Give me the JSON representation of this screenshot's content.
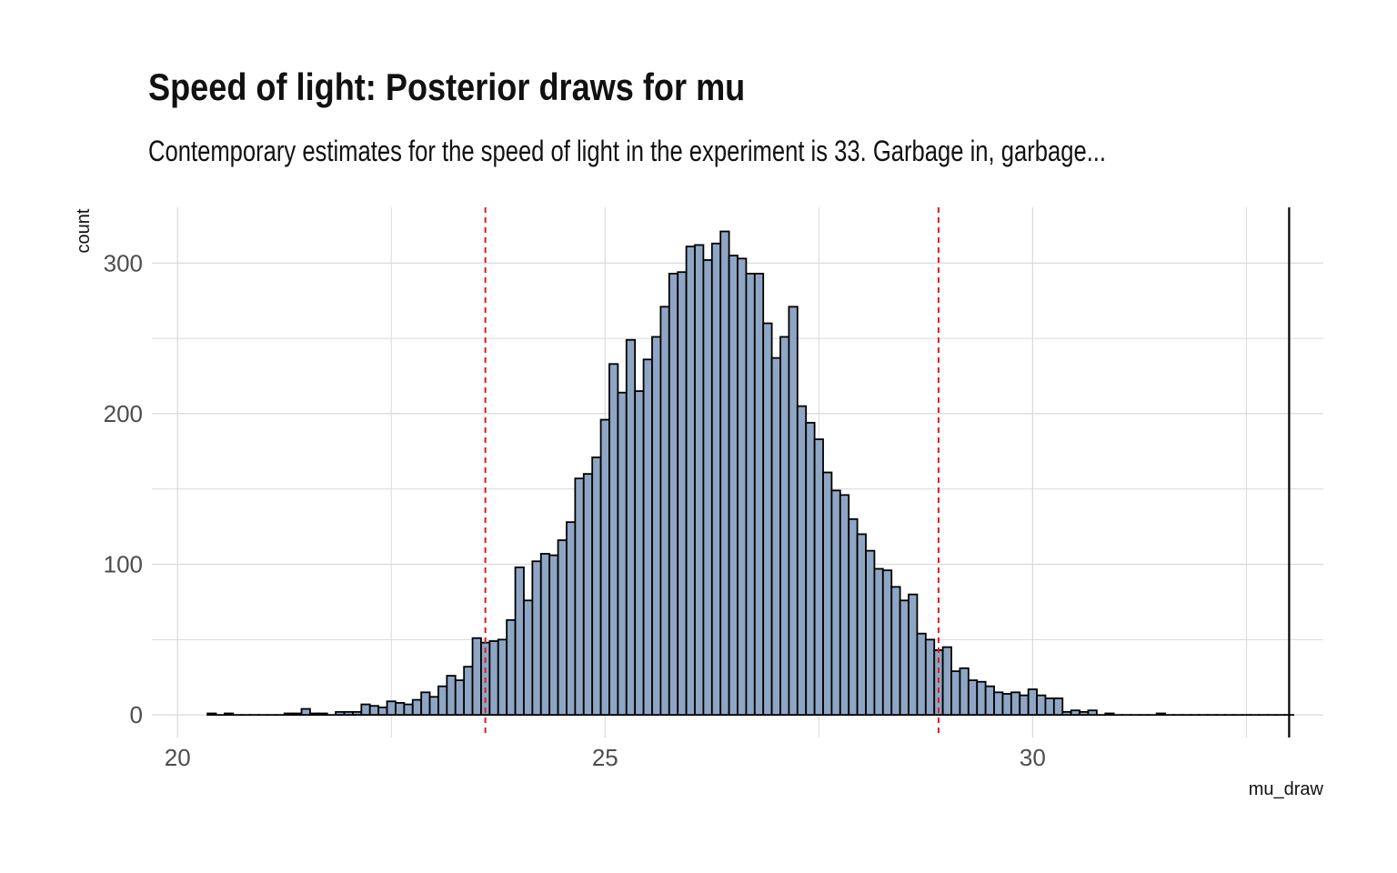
{
  "chart_data": {
    "type": "bar",
    "title": "Speed of light: Posterior draws for mu",
    "subtitle": "Contemporary estimates for the speed of light in the experiment is 33. Garbage in, garbage...",
    "xlabel": "mu_draw",
    "ylabel": "count",
    "xlim": [
      19.7,
      33.4
    ],
    "ylim": [
      -15,
      337
    ],
    "x_ticks": [
      20,
      25,
      30
    ],
    "x_tick_labels": [
      "20",
      "25",
      "30"
    ],
    "y_ticks": [
      0,
      100,
      200,
      300
    ],
    "y_tick_labels": [
      "0",
      "100",
      "200",
      "300"
    ],
    "grid": true,
    "bin_width": 0.1,
    "bin_centers": [
      20.4,
      20.5,
      20.6,
      20.7,
      20.8,
      20.9,
      21.0,
      21.1,
      21.2,
      21.3,
      21.4,
      21.5,
      21.6,
      21.7,
      21.8,
      21.9,
      22.0,
      22.1,
      22.2,
      22.3,
      22.4,
      22.5,
      22.6,
      22.7,
      22.8,
      22.9,
      23.0,
      23.1,
      23.2,
      23.3,
      23.4,
      23.5,
      23.6,
      23.7,
      23.8,
      23.9,
      24.0,
      24.1,
      24.2,
      24.3,
      24.4,
      24.5,
      24.6,
      24.7,
      24.8,
      24.9,
      25.0,
      25.1,
      25.2,
      25.3,
      25.4,
      25.5,
      25.6,
      25.7,
      25.8,
      25.9,
      26.0,
      26.1,
      26.2,
      26.3,
      26.4,
      26.5,
      26.6,
      26.7,
      26.8,
      26.9,
      27.0,
      27.1,
      27.2,
      27.3,
      27.4,
      27.5,
      27.6,
      27.7,
      27.8,
      27.9,
      28.0,
      28.1,
      28.2,
      28.3,
      28.4,
      28.5,
      28.6,
      28.7,
      28.8,
      28.9,
      29.0,
      29.1,
      29.2,
      29.3,
      29.4,
      29.5,
      29.6,
      29.7,
      29.8,
      29.9,
      30.0,
      30.1,
      30.2,
      30.3,
      30.4,
      30.5,
      30.6,
      30.7,
      30.8,
      30.9,
      31.0,
      31.1,
      31.2,
      31.3,
      31.4,
      31.5,
      31.6,
      31.7,
      31.8,
      31.9,
      32.0,
      32.1,
      32.2,
      32.3,
      32.4,
      32.5,
      32.6,
      32.7,
      32.8,
      32.9,
      33.0
    ],
    "counts": [
      1,
      0,
      1,
      0,
      0,
      0,
      0,
      0,
      0,
      1,
      1,
      4,
      1,
      1,
      0,
      2,
      2,
      2,
      7,
      6,
      5,
      9,
      8,
      7,
      10,
      15,
      12,
      19,
      26,
      23,
      32,
      51,
      48,
      49,
      50,
      63,
      98,
      76,
      102,
      107,
      106,
      116,
      128,
      157,
      160,
      171,
      196,
      233,
      214,
      249,
      215,
      236,
      251,
      271,
      293,
      294,
      311,
      312,
      302,
      313,
      321,
      305,
      303,
      293,
      293,
      260,
      237,
      251,
      271,
      205,
      194,
      183,
      161,
      149,
      146,
      130,
      120,
      109,
      97,
      96,
      85,
      76,
      80,
      54,
      50,
      43,
      45,
      29,
      31,
      23,
      22,
      19,
      15,
      14,
      15,
      13,
      17,
      13,
      11,
      11,
      2,
      3,
      2,
      3,
      0,
      1,
      0,
      0,
      0,
      0,
      0,
      1,
      0,
      0,
      0,
      0,
      0,
      0,
      0,
      0,
      0,
      0,
      0,
      0,
      0,
      0,
      0
    ],
    "reference_lines": [
      {
        "x": 23.6,
        "style": "dashed",
        "color": "#e31a1c"
      },
      {
        "x": 28.9,
        "style": "dashed",
        "color": "#e31a1c"
      },
      {
        "x": 33,
        "style": "solid",
        "color": "#000000"
      }
    ],
    "colors": {
      "bar_fill": "#8ea6c4",
      "bar_stroke": "#000000",
      "grid": "#d9d9d9"
    }
  }
}
